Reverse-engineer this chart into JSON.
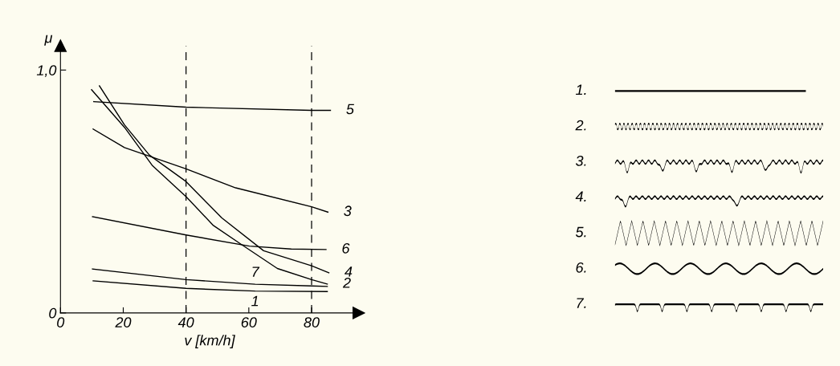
{
  "chart_data": {
    "type": "line",
    "xlabel": "v [km/h]",
    "ylabel": "μ",
    "xlim": [
      0,
      95
    ],
    "xticks": [
      0,
      20,
      40,
      60,
      80
    ],
    "ylim": [
      0,
      1.1
    ],
    "yticks": [
      0,
      {
        "value": 1.0,
        "label": "1,0"
      }
    ],
    "grid": false,
    "legend": false,
    "marker": "none",
    "line_style": "solid",
    "ref_lines": [
      {
        "axis": "x",
        "value": 40,
        "line_style": "dashed",
        "color": "#000000"
      },
      {
        "axis": "x",
        "value": 80,
        "line_style": "dashed",
        "color": "#000000"
      }
    ],
    "series": [
      {
        "color": "#000000",
        "x": [
          10.4,
          40,
          62,
          85
        ],
        "values": [
          0.132,
          0.101,
          0.09,
          0.088
        ]
      },
      {
        "color": "#000000",
        "x": [
          9.9,
          20.4,
          29.2,
          40,
          48.7,
          57.6,
          69.1,
          80,
          85
        ],
        "values": [
          0.919,
          0.764,
          0.608,
          0.479,
          0.36,
          0.282,
          0.183,
          0.137,
          0.119
        ]
      },
      {
        "color": "#000000",
        "x": [
          10.4,
          20.4,
          40,
          55.8,
          80,
          85.2
        ],
        "values": [
          0.757,
          0.681,
          0.593,
          0.515,
          0.437,
          0.415
        ]
      },
      {
        "color": "#000000",
        "x": [
          12.4,
          20.4,
          28.3,
          40,
          51.4,
          64.7,
          80,
          85.5
        ],
        "values": [
          0.935,
          0.774,
          0.65,
          0.541,
          0.391,
          0.256,
          0.194,
          0.165
        ]
      },
      {
        "color": "#000000",
        "x": [
          10.6,
          40,
          80,
          86
        ],
        "values": [
          0.87,
          0.847,
          0.834,
          0.834
        ]
      },
      {
        "color": "#000000",
        "x": [
          10.2,
          40,
          60.2,
          73.5,
          84.6
        ],
        "values": [
          0.396,
          0.321,
          0.275,
          0.263,
          0.261
        ]
      },
      {
        "color": "#000000",
        "x": [
          10.2,
          40,
          62,
          80,
          85
        ],
        "values": [
          0.181,
          0.137,
          0.118,
          0.111,
          0.109
        ]
      }
    ],
    "annotations": [
      {
        "text": "1",
        "x": 62,
        "y": 0.09
      },
      {
        "text": "2",
        "x": 85,
        "y": 0.119
      },
      {
        "text": "3",
        "x": 85.2,
        "y": 0.415
      },
      {
        "text": "4",
        "x": 85.5,
        "y": 0.165
      },
      {
        "text": "5",
        "x": 86,
        "y": 0.834
      },
      {
        "text": "6",
        "x": 84.6,
        "y": 0.261
      },
      {
        "text": "7",
        "x": 62,
        "y": 0.118
      },
      "1.",
      "2.",
      "3.",
      "4.",
      "5.",
      "6.",
      "7."
    ]
  }
}
